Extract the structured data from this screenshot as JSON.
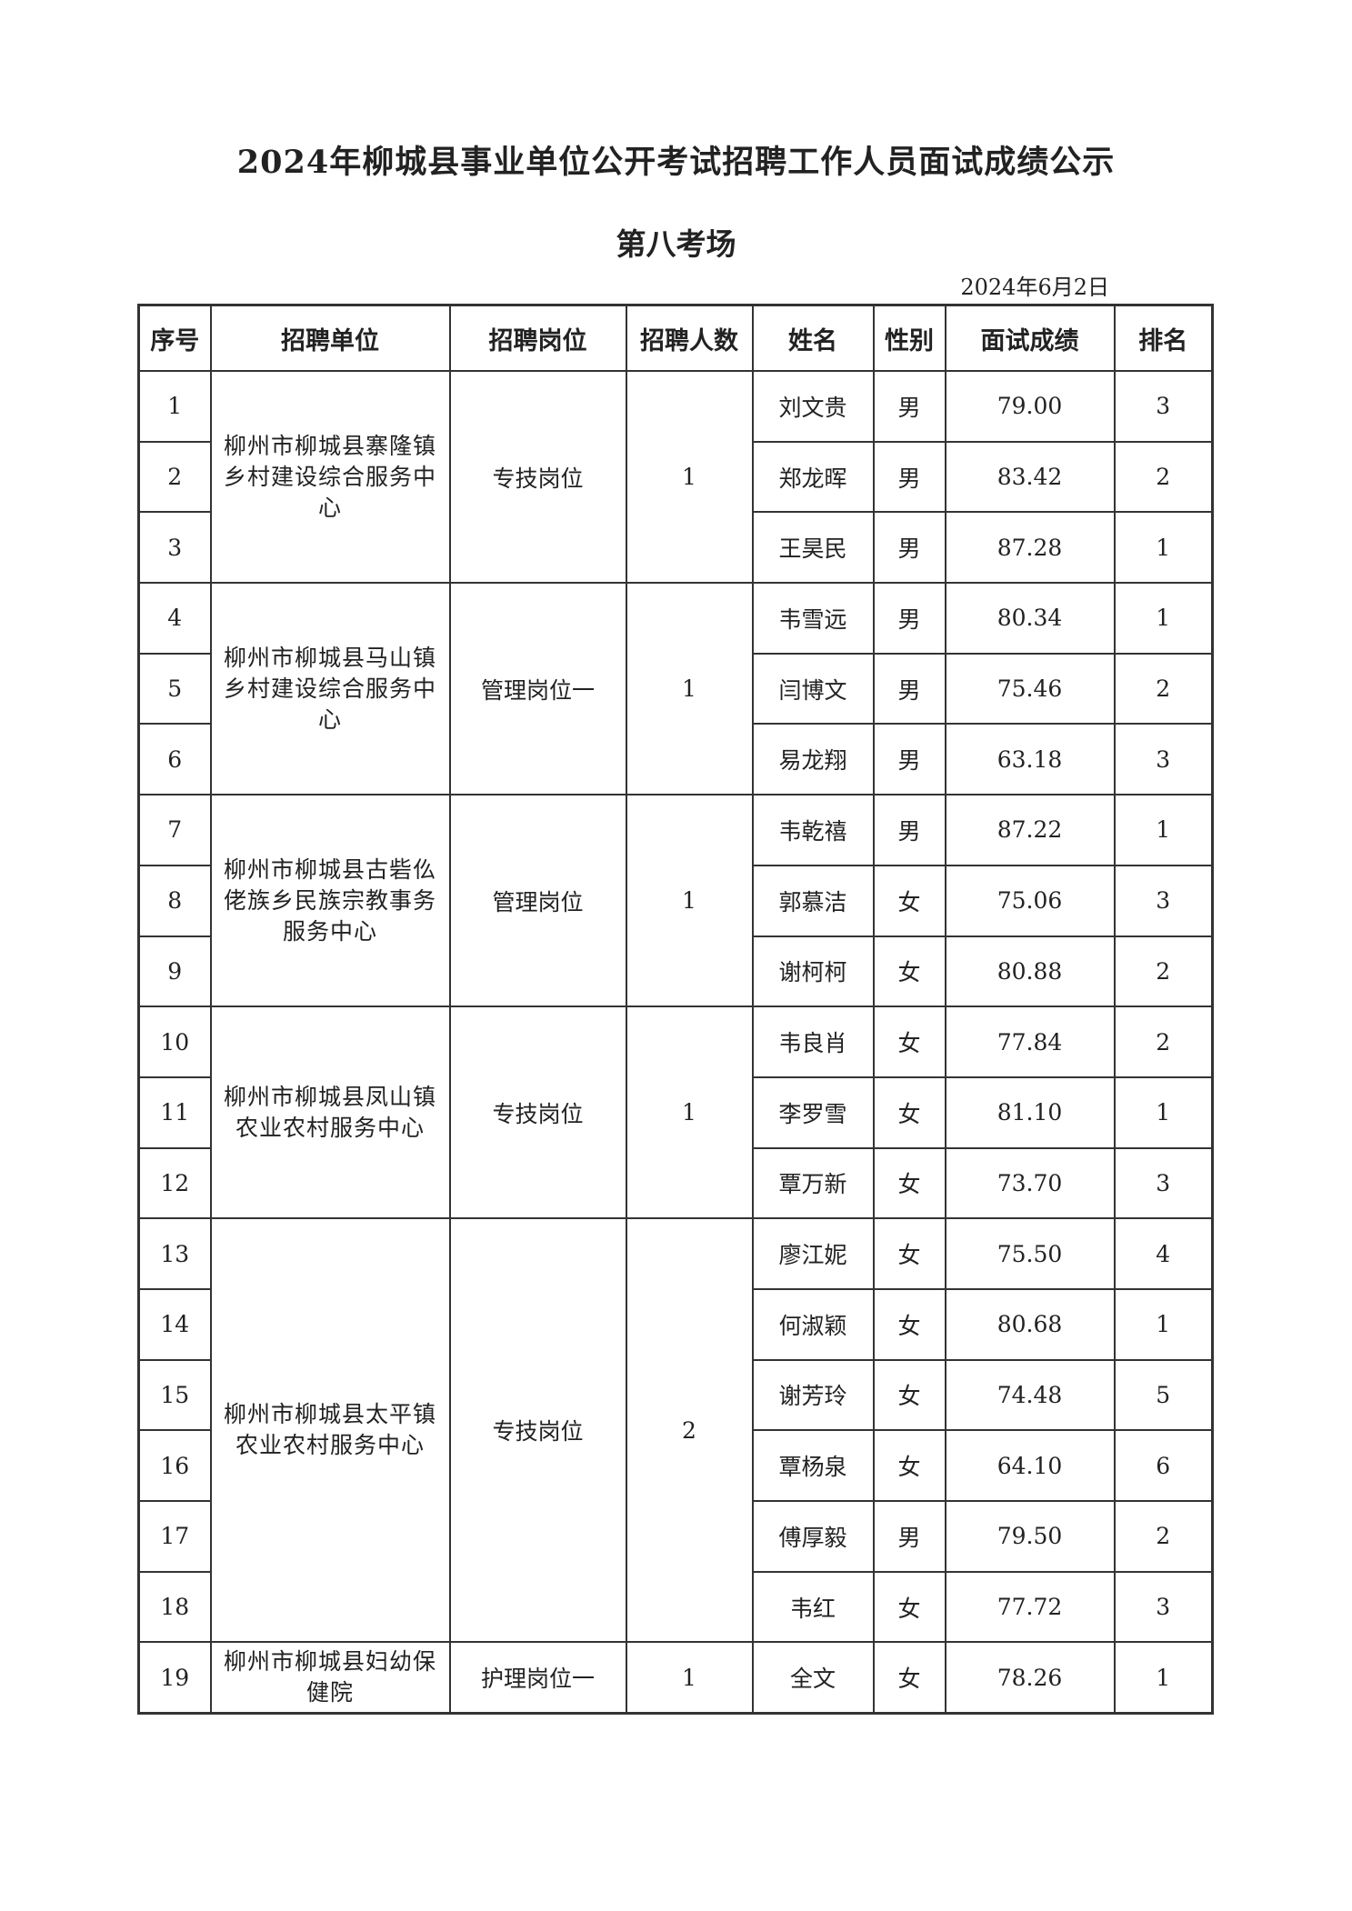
{
  "title": "2024年柳城县事业单位公开考试招聘工作人员面试成绩公示",
  "subtitle": "第八考场",
  "date": "2024年6月2日",
  "headers": [
    "序号",
    "招聘单位",
    "招聘岗位",
    "招聘人数",
    "姓名",
    "性别",
    "面试成绩",
    "排名"
  ],
  "groups": [
    {
      "unit": "柳州市柳城县寨隆镇乡村建设综合服务中心",
      "position": "专技岗位",
      "count": "1",
      "rows": [
        [
          "1",
          "刘文贵",
          "男",
          "79.00",
          "3"
        ],
        [
          "2",
          "郑龙晖",
          "男",
          "83.42",
          "2"
        ],
        [
          "3",
          "王昊民",
          "男",
          "87.28",
          "1"
        ]
      ]
    },
    {
      "unit": "柳州市柳城县马山镇乡村建设综合服务中心",
      "position": "管理岗位一",
      "count": "1",
      "rows": [
        [
          "4",
          "韦雪远",
          "男",
          "80.34",
          "1"
        ],
        [
          "5",
          "闫博文",
          "男",
          "75.46",
          "2"
        ],
        [
          "6",
          "易龙翔",
          "男",
          "63.18",
          "3"
        ]
      ]
    },
    {
      "unit": "柳州市柳城县古砦仫佬族乡民族宗教事务服务中心",
      "position": "管理岗位",
      "count": "1",
      "rows": [
        [
          "7",
          "韦乾禧",
          "男",
          "87.22",
          "1"
        ],
        [
          "8",
          "郭慕洁",
          "女",
          "75.06",
          "3"
        ],
        [
          "9",
          "谢柯柯",
          "女",
          "80.88",
          "2"
        ]
      ]
    },
    {
      "unit": "柳州市柳城县凤山镇农业农村服务中心",
      "position": "专技岗位",
      "count": "1",
      "rows": [
        [
          "10",
          "韦良肖",
          "女",
          "77.84",
          "2"
        ],
        [
          "11",
          "李罗雪",
          "女",
          "81.10",
          "1"
        ],
        [
          "12",
          "覃万新",
          "女",
          "73.70",
          "3"
        ]
      ]
    },
    {
      "unit": "柳州市柳城县太平镇农业农村服务中心",
      "position": "专技岗位",
      "count": "2",
      "rows": [
        [
          "13",
          "廖江妮",
          "女",
          "75.50",
          "4"
        ],
        [
          "14",
          "何淑颖",
          "女",
          "80.68",
          "1"
        ],
        [
          "15",
          "谢芳玲",
          "女",
          "74.48",
          "5"
        ],
        [
          "16",
          "覃杨泉",
          "女",
          "64.10",
          "6"
        ],
        [
          "17",
          "傅厚毅",
          "男",
          "79.50",
          "2"
        ],
        [
          "18",
          "韦红",
          "女",
          "77.72",
          "3"
        ]
      ]
    },
    {
      "unit": "柳州市柳城县妇幼保健院",
      "position": "护理岗位一",
      "count": "1",
      "rows": [
        [
          "19",
          "全文",
          "女",
          "78.26",
          "1"
        ]
      ]
    }
  ]
}
